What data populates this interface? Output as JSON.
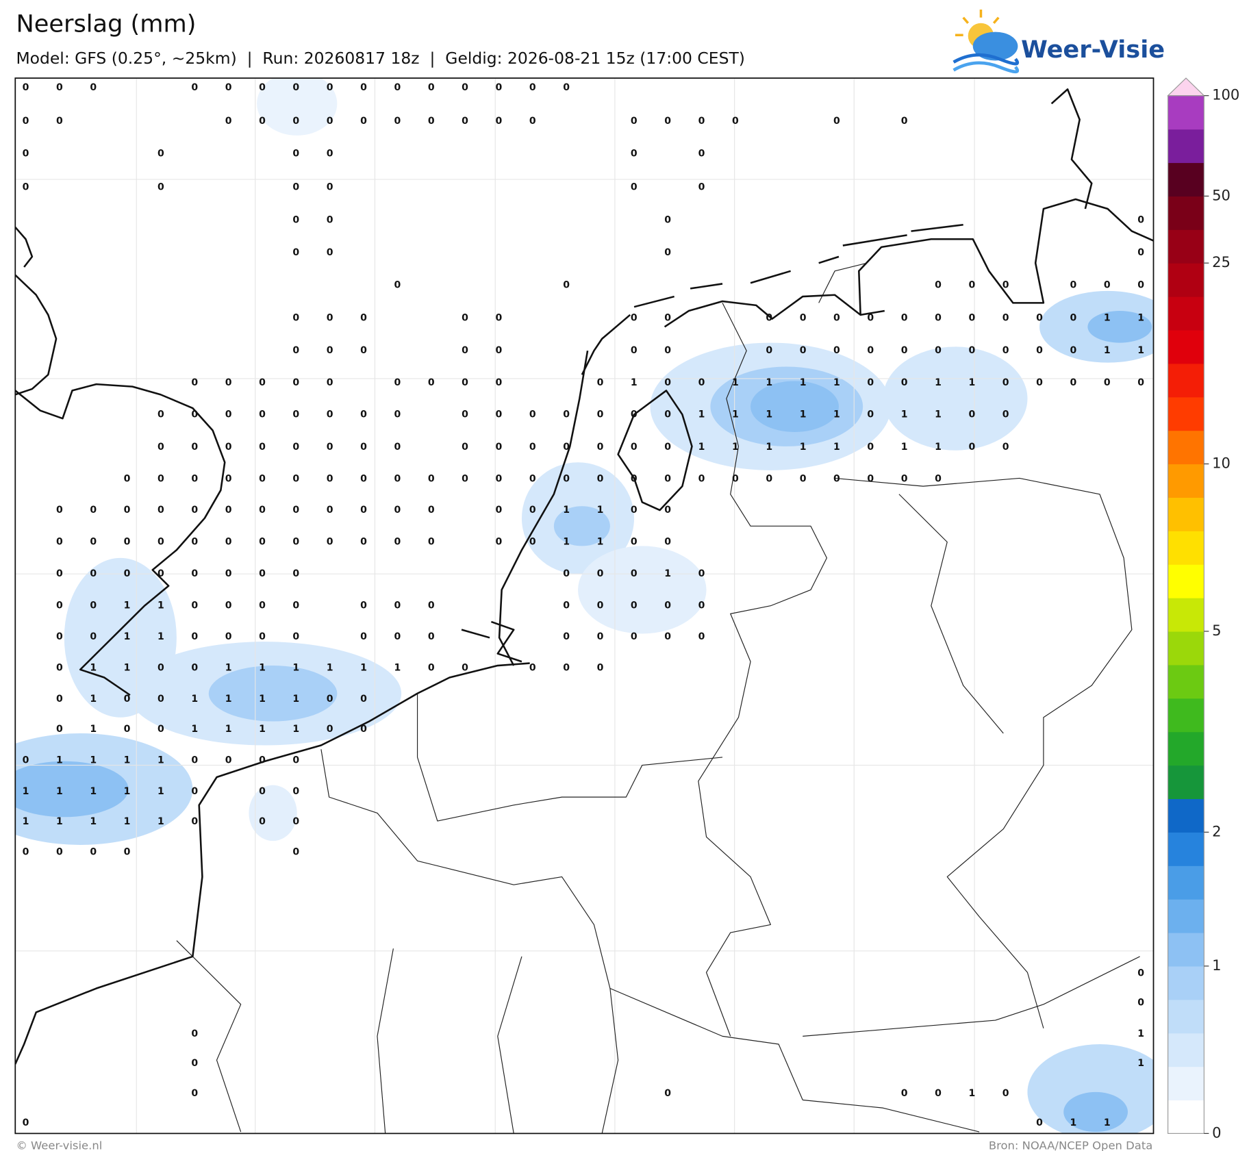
{
  "header": {
    "title": "Neerslag (mm)",
    "subtitle": "Model: GFS (0.25°, ~25km)  |  Run: 20260817 18z  |  Geldig: 2026-08-21 15z (17:00 CEST)",
    "logo": "Weer-Visie"
  },
  "grid": {
    "values": [
      [
        0,
        0,
        0,
        null,
        null,
        0,
        0,
        0,
        0,
        0,
        0,
        0,
        0,
        0,
        0,
        0,
        0,
        null,
        null,
        null,
        null,
        null,
        null,
        null,
        null,
        null,
        null,
        null,
        null,
        null,
        null,
        null,
        null,
        null
      ],
      [
        0,
        0,
        null,
        null,
        null,
        null,
        0,
        0,
        0,
        0,
        0,
        0,
        0,
        0,
        0,
        0,
        null,
        null,
        0,
        0,
        0,
        0,
        null,
        null,
        0,
        null,
        0,
        null,
        null,
        null,
        null,
        null,
        null,
        null
      ],
      [
        0,
        null,
        null,
        null,
        0,
        null,
        null,
        null,
        0,
        0,
        null,
        null,
        null,
        null,
        null,
        null,
        null,
        null,
        0,
        null,
        0,
        null,
        null,
        null,
        null,
        null,
        null,
        null,
        null,
        null,
        null,
        null,
        null,
        null
      ],
      [
        0,
        null,
        null,
        null,
        0,
        null,
        null,
        null,
        0,
        0,
        null,
        null,
        null,
        null,
        null,
        null,
        null,
        null,
        0,
        null,
        0,
        null,
        null,
        null,
        null,
        null,
        null,
        null,
        null,
        null,
        null,
        null,
        null,
        null
      ],
      [
        null,
        null,
        null,
        null,
        null,
        null,
        null,
        null,
        0,
        0,
        null,
        null,
        null,
        null,
        null,
        null,
        null,
        null,
        null,
        0,
        null,
        null,
        null,
        null,
        null,
        null,
        null,
        null,
        null,
        null,
        null,
        null,
        null,
        0
      ],
      [
        null,
        null,
        null,
        null,
        null,
        null,
        null,
        null,
        0,
        0,
        null,
        null,
        null,
        null,
        null,
        null,
        null,
        null,
        null,
        0,
        null,
        null,
        null,
        null,
        null,
        null,
        null,
        null,
        null,
        null,
        null,
        null,
        null,
        0
      ],
      [
        null,
        null,
        null,
        null,
        null,
        null,
        null,
        null,
        null,
        null,
        null,
        0,
        null,
        null,
        null,
        null,
        0,
        null,
        null,
        null,
        null,
        null,
        null,
        null,
        null,
        null,
        null,
        0,
        0,
        0,
        null,
        0,
        0,
        0
      ],
      [
        null,
        null,
        null,
        null,
        null,
        null,
        null,
        null,
        0,
        0,
        0,
        null,
        null,
        0,
        0,
        null,
        null,
        null,
        0,
        0,
        null,
        null,
        0,
        0,
        0,
        0,
        0,
        0,
        0,
        0,
        0,
        0,
        1,
        1
      ],
      [
        null,
        null,
        null,
        null,
        null,
        null,
        null,
        null,
        0,
        0,
        0,
        null,
        null,
        0,
        0,
        null,
        null,
        null,
        0,
        0,
        null,
        null,
        0,
        0,
        0,
        0,
        0,
        0,
        0,
        0,
        0,
        0,
        1,
        1
      ],
      [
        null,
        null,
        null,
        null,
        null,
        0,
        0,
        0,
        0,
        0,
        null,
        0,
        0,
        0,
        0,
        null,
        null,
        0,
        1,
        0,
        0,
        1,
        1,
        1,
        1,
        0,
        0,
        1,
        1,
        0,
        0,
        0,
        0,
        0
      ],
      [
        null,
        null,
        null,
        null,
        0,
        0,
        0,
        0,
        0,
        0,
        0,
        0,
        null,
        0,
        0,
        0,
        0,
        0,
        0,
        0,
        1,
        1,
        1,
        1,
        1,
        0,
        1,
        1,
        0,
        0,
        null,
        null,
        null,
        null
      ],
      [
        null,
        null,
        null,
        null,
        0,
        0,
        0,
        0,
        0,
        0,
        0,
        0,
        null,
        0,
        0,
        0,
        0,
        0,
        0,
        0,
        1,
        1,
        1,
        1,
        1,
        0,
        1,
        1,
        0,
        0,
        null,
        null,
        null,
        null
      ],
      [
        null,
        null,
        null,
        0,
        0,
        0,
        0,
        0,
        0,
        0,
        0,
        0,
        0,
        0,
        0,
        0,
        0,
        0,
        0,
        0,
        0,
        0,
        0,
        0,
        0,
        0,
        0,
        0,
        null,
        null,
        null,
        null,
        null,
        null
      ],
      [
        null,
        0,
        0,
        0,
        0,
        0,
        0,
        0,
        0,
        0,
        0,
        0,
        0,
        null,
        0,
        0,
        1,
        1,
        0,
        0,
        null,
        null,
        null,
        null,
        null,
        null,
        null,
        null,
        null,
        null,
        null,
        null,
        null,
        null
      ],
      [
        null,
        0,
        0,
        0,
        0,
        0,
        0,
        0,
        0,
        0,
        0,
        0,
        0,
        null,
        0,
        0,
        1,
        1,
        0,
        0,
        null,
        null,
        null,
        null,
        null,
        null,
        null,
        null,
        null,
        null,
        null,
        null,
        null,
        null
      ],
      [
        null,
        0,
        0,
        0,
        0,
        0,
        0,
        0,
        0,
        null,
        null,
        null,
        null,
        null,
        null,
        null,
        0,
        0,
        0,
        1,
        0,
        null,
        null,
        null,
        null,
        null,
        null,
        null,
        null,
        null,
        null,
        null,
        null,
        null
      ],
      [
        null,
        0,
        0,
        1,
        1,
        0,
        0,
        0,
        0,
        null,
        0,
        0,
        0,
        null,
        null,
        null,
        0,
        0,
        0,
        0,
        0,
        null,
        null,
        null,
        null,
        null,
        null,
        null,
        null,
        null,
        null,
        null,
        null,
        null
      ],
      [
        null,
        0,
        0,
        1,
        1,
        0,
        0,
        0,
        0,
        null,
        0,
        0,
        0,
        null,
        null,
        null,
        0,
        0,
        0,
        0,
        0,
        null,
        null,
        null,
        null,
        null,
        null,
        null,
        null,
        null,
        null,
        null,
        null,
        null
      ],
      [
        null,
        0,
        1,
        1,
        0,
        0,
        1,
        1,
        1,
        1,
        1,
        1,
        0,
        0,
        null,
        0,
        0,
        0,
        null,
        null,
        null,
        null,
        null,
        null,
        null,
        null,
        null,
        null,
        null,
        null,
        null,
        null,
        null,
        null
      ],
      [
        null,
        0,
        1,
        0,
        0,
        1,
        1,
        1,
        1,
        0,
        0,
        null,
        null,
        null,
        null,
        null,
        null,
        null,
        null,
        null,
        null,
        null,
        null,
        null,
        null,
        null,
        null,
        null,
        null,
        null,
        null,
        null,
        null,
        null
      ],
      [
        null,
        0,
        1,
        0,
        0,
        1,
        1,
        1,
        1,
        0,
        0,
        null,
        null,
        null,
        null,
        null,
        null,
        null,
        null,
        null,
        null,
        null,
        null,
        null,
        null,
        null,
        null,
        null,
        null,
        null,
        null,
        null,
        null,
        null
      ],
      [
        0,
        1,
        1,
        1,
        1,
        0,
        0,
        0,
        0,
        null,
        null,
        null,
        null,
        null,
        null,
        null,
        null,
        null,
        null,
        null,
        null,
        null,
        null,
        null,
        null,
        null,
        null,
        null,
        null,
        null,
        null,
        null,
        null,
        null
      ],
      [
        1,
        1,
        1,
        1,
        1,
        0,
        null,
        0,
        0,
        null,
        null,
        null,
        null,
        null,
        null,
        null,
        null,
        null,
        null,
        null,
        null,
        null,
        null,
        null,
        null,
        null,
        null,
        null,
        null,
        null,
        null,
        null,
        null,
        null
      ],
      [
        1,
        1,
        1,
        1,
        1,
        0,
        null,
        0,
        0,
        null,
        null,
        null,
        null,
        null,
        null,
        null,
        null,
        null,
        null,
        null,
        null,
        null,
        null,
        null,
        null,
        null,
        null,
        null,
        null,
        null,
        null,
        null,
        null,
        null
      ],
      [
        0,
        0,
        0,
        0,
        null,
        null,
        null,
        null,
        0,
        null,
        null,
        null,
        null,
        null,
        null,
        null,
        null,
        null,
        null,
        null,
        null,
        null,
        null,
        null,
        null,
        null,
        null,
        null,
        null,
        null,
        null,
        null,
        null,
        null
      ],
      [
        null,
        null,
        null,
        null,
        null,
        null,
        null,
        null,
        null,
        null,
        null,
        null,
        null,
        null,
        null,
        null,
        null,
        null,
        null,
        null,
        null,
        null,
        null,
        null,
        null,
        null,
        null,
        null,
        null,
        null,
        null,
        null,
        null,
        null
      ],
      [
        null,
        null,
        null,
        null,
        null,
        null,
        null,
        null,
        null,
        null,
        null,
        null,
        null,
        null,
        null,
        null,
        null,
        null,
        null,
        null,
        null,
        null,
        null,
        null,
        null,
        null,
        null,
        null,
        null,
        null,
        null,
        null,
        null,
        null
      ],
      [
        null,
        null,
        null,
        null,
        null,
        null,
        null,
        null,
        null,
        null,
        null,
        null,
        null,
        null,
        null,
        null,
        null,
        null,
        null,
        null,
        null,
        null,
        null,
        null,
        null,
        null,
        null,
        null,
        null,
        null,
        null,
        null,
        null,
        null
      ],
      [
        null,
        null,
        null,
        null,
        null,
        null,
        null,
        null,
        null,
        null,
        null,
        null,
        null,
        null,
        null,
        null,
        null,
        null,
        null,
        null,
        null,
        null,
        null,
        null,
        null,
        null,
        null,
        null,
        null,
        null,
        null,
        null,
        null,
        0
      ],
      [
        null,
        null,
        null,
        null,
        null,
        null,
        null,
        null,
        null,
        null,
        null,
        null,
        null,
        null,
        null,
        null,
        null,
        null,
        null,
        null,
        null,
        null,
        null,
        null,
        null,
        null,
        null,
        null,
        null,
        null,
        null,
        null,
        null,
        0
      ],
      [
        null,
        null,
        null,
        null,
        null,
        0,
        null,
        null,
        null,
        null,
        null,
        null,
        null,
        null,
        null,
        null,
        null,
        null,
        null,
        null,
        null,
        null,
        null,
        null,
        null,
        null,
        null,
        null,
        null,
        null,
        null,
        null,
        null,
        1
      ],
      [
        null,
        null,
        null,
        null,
        null,
        0,
        null,
        null,
        null,
        null,
        null,
        null,
        null,
        null,
        null,
        null,
        null,
        null,
        null,
        null,
        null,
        null,
        null,
        null,
        null,
        null,
        null,
        null,
        null,
        null,
        null,
        null,
        null,
        1
      ],
      [
        null,
        null,
        null,
        null,
        null,
        0,
        null,
        null,
        null,
        null,
        null,
        null,
        null,
        null,
        null,
        null,
        null,
        null,
        null,
        0,
        null,
        null,
        null,
        null,
        null,
        null,
        0,
        0,
        1,
        0,
        null,
        null,
        null,
        null
      ],
      [
        0,
        null,
        null,
        null,
        null,
        null,
        null,
        null,
        null,
        null,
        null,
        null,
        null,
        null,
        null,
        null,
        null,
        null,
        null,
        null,
        null,
        null,
        null,
        null,
        null,
        null,
        null,
        null,
        null,
        null,
        0,
        1,
        1,
        null
      ]
    ]
  },
  "colorbar": {
    "levels": [
      0,
      0.2,
      0.4,
      0.6,
      0.8,
      1,
      1.25,
      1.5,
      1.75,
      2,
      2.5,
      3,
      3.5,
      4,
      4.5,
      5,
      6,
      7,
      8,
      9,
      10,
      12.5,
      15,
      17.5,
      20,
      22.5,
      25,
      35,
      50,
      60,
      75,
      100
    ],
    "colors": [
      "#ffffff",
      "#eaf3fd",
      "#d5e8fb",
      "#c0ddf9",
      "#a9d0f7",
      "#8dc1f3",
      "#6cb0ee",
      "#4a9de7",
      "#2683dd",
      "#0f68c8",
      "#16963a",
      "#23a82a",
      "#3fba1e",
      "#6cca12",
      "#9bd80a",
      "#c8e806",
      "#ffff00",
      "#ffe000",
      "#ffc000",
      "#ff9a00",
      "#ff7400",
      "#ff3c00",
      "#f41e06",
      "#e0000c",
      "#c80010",
      "#b00012",
      "#980016",
      "#7a0018",
      "#580020",
      "#7a1e9c",
      "#a83cc0",
      "#e066cc"
    ],
    "extend_color": "#fcd4ee",
    "ticks": [
      0,
      1,
      2,
      5,
      10,
      25,
      50,
      100
    ]
  },
  "footer": {
    "copyright": "© Weer-visie.nl",
    "source": "Bron: NOAA/NCEP Open Data"
  }
}
